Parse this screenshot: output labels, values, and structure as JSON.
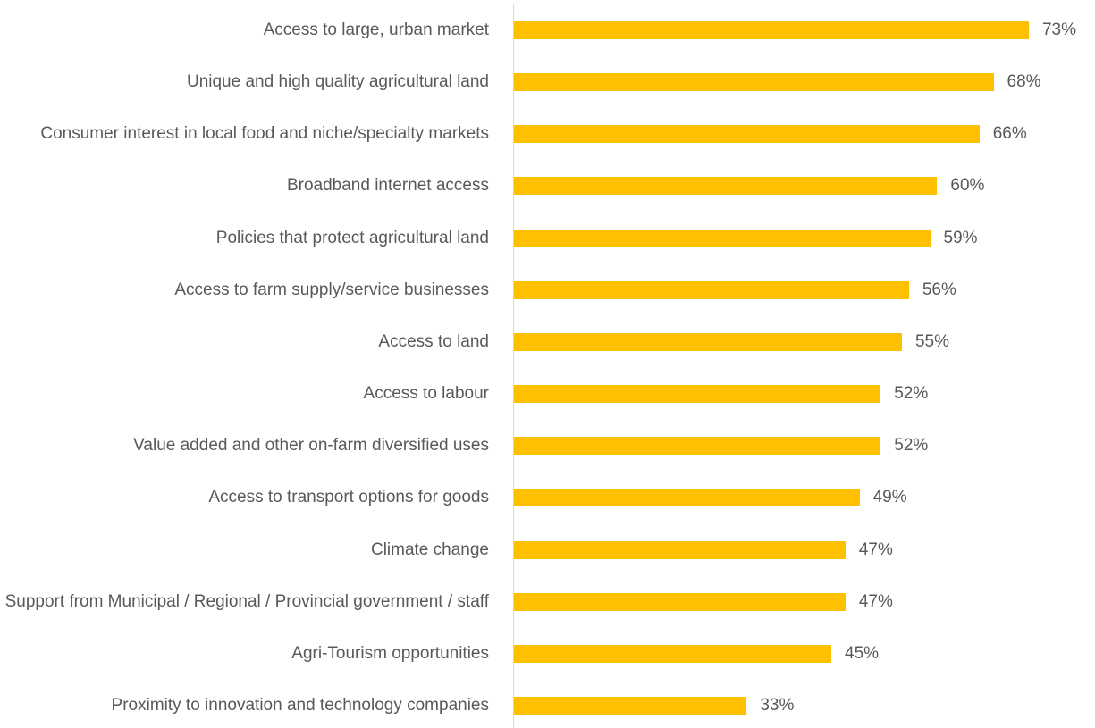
{
  "chart_data": {
    "type": "bar",
    "orientation": "horizontal",
    "color": "#FFC000",
    "categories": [
      "Access to large, urban market",
      "Unique and high quality agricultural land",
      "Consumer interest in local food and niche/specialty markets",
      "Broadband internet access",
      "Policies that protect agricultural land",
      "Access to farm supply/service businesses",
      "Access to land",
      "Access to labour",
      "Value added and other on-farm diversified uses",
      "Access to transport options for goods",
      "Climate change",
      "Support from Municipal / Regional / Provincial government / staff",
      "Agri-Tourism opportunities",
      "Proximity to innovation and technology companies"
    ],
    "values": [
      73,
      68,
      66,
      60,
      59,
      56,
      55,
      52,
      52,
      49,
      47,
      47,
      45,
      33
    ],
    "value_labels": [
      "73%",
      "68%",
      "66%",
      "60%",
      "59%",
      "56%",
      "55%",
      "52%",
      "52%",
      "49%",
      "47%",
      "47%",
      "45%",
      "33%"
    ]
  }
}
